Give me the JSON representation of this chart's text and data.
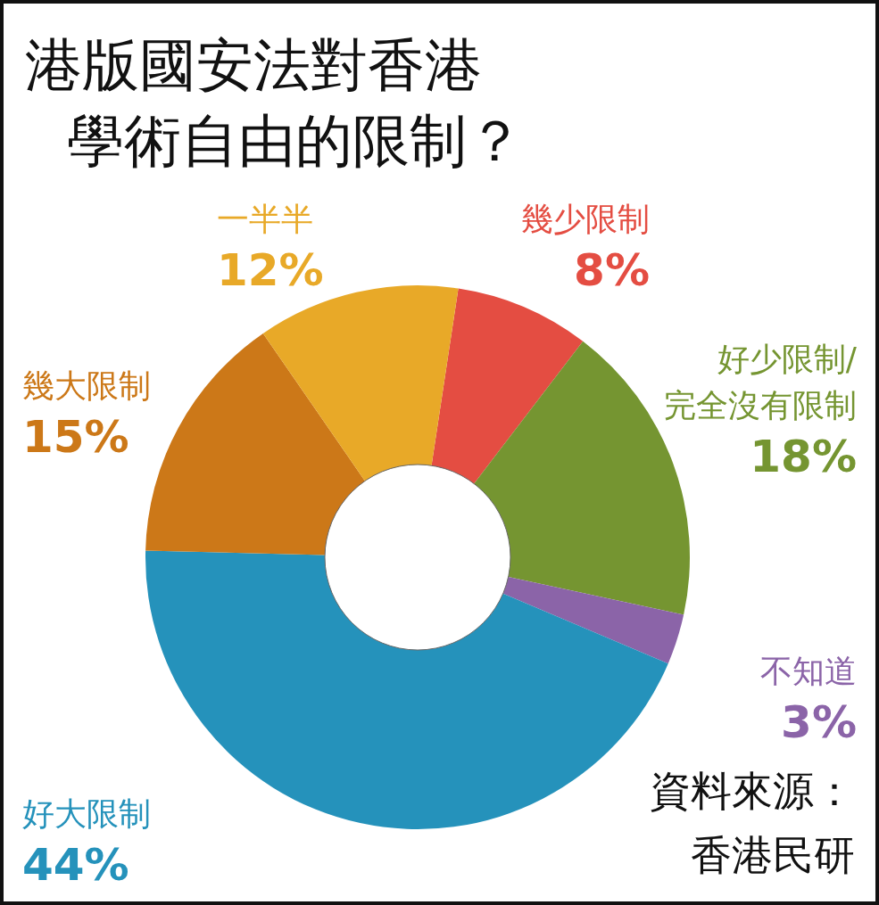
{
  "chart_data": {
    "type": "donut",
    "title": "港版國安法對香港學術自由的限制？",
    "categories": [
      "幾少限制",
      "好少限制/完全沒有限制",
      "不知道",
      "好大限制",
      "幾大限制",
      "一半半"
    ],
    "values": [
      8,
      18,
      3,
      44,
      15,
      12
    ],
    "colors": [
      "#e44d42",
      "#759531",
      "#8b64a8",
      "#2592bb",
      "#cc7818",
      "#e8a928"
    ],
    "value_labels": [
      "8%",
      "18%",
      "3%",
      "44%",
      "15%",
      "12%"
    ],
    "annotations": [
      "資料來源：香港民研"
    ]
  }
}
